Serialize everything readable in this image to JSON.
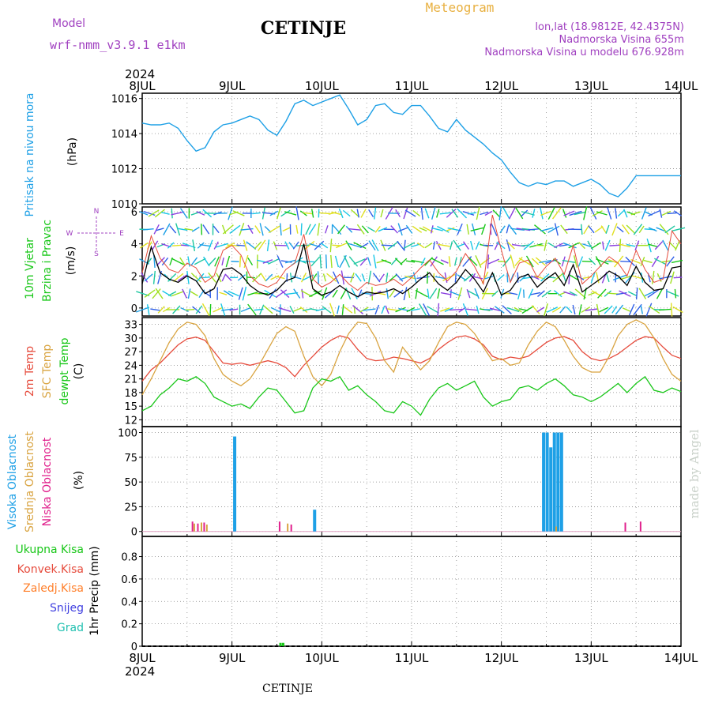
{
  "header": {
    "model_label": "Model",
    "model_name": "wrf-nmm_v3.9.1  e1km",
    "station": "CETINJE",
    "product": "Meteogram",
    "coords": "lon,lat (18.9812E, 42.4375N)",
    "elevation": "Nadmorska Visina 655m",
    "model_elevation": "Nadmorska Visina u modelu 676.928m",
    "year_top": "2024",
    "year_bottom": "2024",
    "footer_station": "CETINJE",
    "credit": "made by Angel"
  },
  "colors": {
    "pressure": "#1ea0e6",
    "temp2m": "#e64b3c",
    "sfc": "#d9a441",
    "dewpt": "#19c719",
    "high_cloud": "#1ea0e6",
    "mid_cloud": "#d9a441",
    "low_cloud": "#e0208c",
    "wind_speed": "#000000",
    "gust": "#e64b3c",
    "total_precip": "#19c719",
    "conv_precip": "#e64b3c",
    "frz_precip": "#ff7f2a",
    "snow": "#4040e0",
    "graupel": "#20c0b0",
    "purple_text": "#a040c0",
    "orange_text": "#e8b040",
    "credit": "#c8d0c8"
  },
  "chart_data": [
    {
      "type": "line",
      "id": "pressure",
      "ylabel": "Pritisak na nivou mora",
      "unit": "(hPa)",
      "yticks": [
        1010,
        1012,
        1014,
        1016
      ],
      "ylim": [
        1010,
        1016.3
      ],
      "x_days": [
        "8JUL",
        "9JUL",
        "10JUL",
        "11JUL",
        "12JUL",
        "13JUL",
        "14JUL"
      ],
      "grid": true,
      "series": [
        {
          "name": "Pritisak na nivou mora",
          "color_key": "pressure",
          "x": [
            0,
            0.1,
            0.2,
            0.3,
            0.4,
            0.5,
            0.6,
            0.7,
            0.8,
            0.9,
            1.0,
            1.1,
            1.2,
            1.3,
            1.4,
            1.5,
            1.6,
            1.7,
            1.8,
            1.9,
            2.0,
            2.1,
            2.2,
            2.3,
            2.4,
            2.5,
            2.6,
            2.7,
            2.8,
            2.9,
            3.0,
            3.1,
            3.2,
            3.3,
            3.4,
            3.5,
            3.6,
            3.7,
            3.8,
            3.9,
            4.0,
            4.1,
            4.2,
            4.3,
            4.4,
            4.5,
            4.6,
            4.7,
            4.8,
            4.9,
            5.0,
            5.1,
            5.2,
            5.3,
            5.4,
            5.5,
            5.6,
            5.7,
            5.8,
            5.9,
            6.0
          ],
          "y": [
            1014.6,
            1014.5,
            1014.5,
            1014.6,
            1014.3,
            1013.6,
            1013.0,
            1013.2,
            1014.1,
            1014.5,
            1014.6,
            1014.8,
            1015.0,
            1014.8,
            1014.2,
            1013.9,
            1014.7,
            1015.7,
            1015.9,
            1015.6,
            1015.8,
            1016.0,
            1016.2,
            1015.4,
            1014.5,
            1014.8,
            1015.6,
            1015.7,
            1015.2,
            1015.1,
            1015.6,
            1015.6,
            1015.0,
            1014.3,
            1014.1,
            1014.8,
            1014.2,
            1013.8,
            1013.4,
            1012.9,
            1012.5,
            1011.8,
            1011.2,
            1011.0,
            1011.2,
            1011.1,
            1011.3,
            1011.3,
            1011.0,
            1011.2,
            1011.4,
            1011.1,
            1010.6,
            1010.4,
            1010.9,
            1011.6,
            1011.6,
            1011.6,
            1011.6,
            1011.6,
            1011.6
          ]
        }
      ]
    },
    {
      "type": "line",
      "id": "wind",
      "ylabel": "10m Vjetar",
      "ylabel2": "Brzina i Pravac",
      "unit": "(m/s)",
      "compass": {
        "n": "N",
        "w": "W",
        "e": "E",
        "s": "S"
      },
      "yticks": [
        0,
        2,
        4,
        6
      ],
      "ylim": [
        -0.5,
        6.3
      ],
      "grid": true,
      "series": [
        {
          "name": "Brzina",
          "color_key": "wind_speed",
          "x": [
            0,
            0.1,
            0.2,
            0.3,
            0.4,
            0.5,
            0.6,
            0.7,
            0.8,
            0.9,
            1.0,
            1.1,
            1.2,
            1.3,
            1.4,
            1.5,
            1.6,
            1.7,
            1.8,
            1.9,
            2.0,
            2.1,
            2.2,
            2.3,
            2.4,
            2.5,
            2.6,
            2.7,
            2.8,
            2.9,
            3.0,
            3.1,
            3.2,
            3.3,
            3.4,
            3.5,
            3.6,
            3.7,
            3.8,
            3.9,
            4.0,
            4.1,
            4.2,
            4.3,
            4.4,
            4.5,
            4.6,
            4.7,
            4.8,
            4.9,
            5.0,
            5.1,
            5.2,
            5.3,
            5.4,
            5.5,
            5.6,
            5.7,
            5.8,
            5.9,
            6.0
          ],
          "y": [
            1.5,
            3.8,
            2.2,
            1.8,
            1.6,
            2.0,
            1.7,
            0.9,
            1.2,
            2.4,
            2.5,
            2.1,
            1.4,
            1.0,
            0.8,
            1.1,
            1.7,
            1.9,
            4.0,
            1.2,
            0.8,
            1.0,
            1.4,
            1.0,
            0.7,
            1.0,
            0.9,
            1.0,
            1.2,
            0.9,
            1.3,
            1.8,
            2.2,
            1.5,
            1.1,
            1.6,
            2.4,
            1.8,
            1.0,
            2.2,
            0.8,
            1.1,
            1.9,
            2.1,
            1.3,
            1.8,
            2.2,
            1.4,
            2.7,
            1.0,
            1.4,
            1.8,
            2.3,
            2.0,
            1.4,
            2.6,
            1.6,
            1.1,
            1.2,
            2.5,
            2.6
          ]
        },
        {
          "name": "Udari",
          "color_key": "gust",
          "x": [
            0,
            0.1,
            0.2,
            0.3,
            0.4,
            0.5,
            0.6,
            0.7,
            0.8,
            0.9,
            1.0,
            1.1,
            1.2,
            1.3,
            1.4,
            1.5,
            1.6,
            1.7,
            1.8,
            1.9,
            2.0,
            2.1,
            2.2,
            2.3,
            2.4,
            2.5,
            2.6,
            2.7,
            2.8,
            2.9,
            3.0,
            3.1,
            3.2,
            3.3,
            3.4,
            3.5,
            3.6,
            3.7,
            3.8,
            3.9,
            4.0,
            4.1,
            4.2,
            4.3,
            4.4,
            4.5,
            4.6,
            4.7,
            4.8,
            4.9,
            5.0,
            5.1,
            5.2,
            5.3,
            5.4,
            5.5,
            5.6,
            5.7,
            5.8,
            5.9,
            6.0
          ],
          "y": [
            2.2,
            4.5,
            3.1,
            2.4,
            2.2,
            2.8,
            2.5,
            1.6,
            2.0,
            3.6,
            3.9,
            3.3,
            2.0,
            1.5,
            1.3,
            1.6,
            2.4,
            2.8,
            4.6,
            1.8,
            1.3,
            1.6,
            2.1,
            1.5,
            1.1,
            1.6,
            1.4,
            1.5,
            1.8,
            1.4,
            1.9,
            2.5,
            3.0,
            2.2,
            1.7,
            2.3,
            3.4,
            2.6,
            1.5,
            5.8,
            3.6,
            1.6,
            2.8,
            3.0,
            1.9,
            2.6,
            3.1,
            2.1,
            3.9,
            1.5,
            2.0,
            2.6,
            3.2,
            2.8,
            2.0,
            3.6,
            2.4,
            1.6,
            1.8,
            4.8,
            4.0
          ]
        }
      ]
    },
    {
      "type": "line",
      "id": "temperature",
      "ylabel": "2m Temp",
      "ylabel2": "SFC Temp",
      "ylabel3": "dewpt Temp",
      "unit": "(C)",
      "yticks": [
        12,
        15,
        18,
        21,
        24,
        27,
        30,
        33
      ],
      "ylim": [
        10.5,
        34.5
      ],
      "grid": true,
      "series": [
        {
          "name": "2m Temp",
          "color_key": "temp2m",
          "x": [
            0,
            0.1,
            0.2,
            0.3,
            0.4,
            0.5,
            0.6,
            0.7,
            0.8,
            0.9,
            1.0,
            1.1,
            1.2,
            1.3,
            1.4,
            1.5,
            1.6,
            1.7,
            1.8,
            1.9,
            2.0,
            2.1,
            2.2,
            2.3,
            2.4,
            2.5,
            2.6,
            2.7,
            2.8,
            2.9,
            3.0,
            3.1,
            3.2,
            3.3,
            3.4,
            3.5,
            3.6,
            3.7,
            3.8,
            3.9,
            4.0,
            4.1,
            4.2,
            4.3,
            4.4,
            4.5,
            4.6,
            4.7,
            4.8,
            4.9,
            5.0,
            5.1,
            5.2,
            5.3,
            5.4,
            5.5,
            5.6,
            5.7,
            5.8,
            5.9,
            6.0
          ],
          "y": [
            20.5,
            23,
            24.5,
            26.5,
            28.5,
            29.8,
            30.2,
            29.5,
            27,
            24.5,
            24.2,
            24.5,
            24,
            24.5,
            25,
            24.5,
            23.5,
            21.5,
            24,
            26,
            28,
            29.5,
            30.5,
            30,
            27.5,
            25.5,
            25,
            25.2,
            25.8,
            25.5,
            25,
            24.5,
            25.5,
            27.5,
            29,
            30.2,
            30.5,
            29.8,
            28.5,
            26,
            25.2,
            25.8,
            25.5,
            26,
            27.5,
            29,
            30,
            30.3,
            29.5,
            27,
            25.5,
            25,
            25.5,
            26.5,
            28,
            29.5,
            30.3,
            30,
            28,
            26.2,
            25.5
          ]
        },
        {
          "name": "SFC Temp",
          "color_key": "sfc",
          "x": [
            0,
            0.1,
            0.2,
            0.3,
            0.4,
            0.5,
            0.6,
            0.7,
            0.8,
            0.9,
            1.0,
            1.1,
            1.2,
            1.3,
            1.4,
            1.5,
            1.6,
            1.7,
            1.8,
            1.9,
            2.0,
            2.1,
            2.2,
            2.3,
            2.4,
            2.5,
            2.6,
            2.7,
            2.8,
            2.9,
            3.0,
            3.1,
            3.2,
            3.3,
            3.4,
            3.5,
            3.6,
            3.7,
            3.8,
            3.9,
            4.0,
            4.1,
            4.2,
            4.3,
            4.4,
            4.5,
            4.6,
            4.7,
            4.8,
            4.9,
            5.0,
            5.1,
            5.2,
            5.3,
            5.4,
            5.5,
            5.6,
            5.7,
            5.8,
            5.9,
            6.0
          ],
          "y": [
            17.5,
            21,
            25,
            29,
            32,
            33.5,
            33,
            30.5,
            25.5,
            22,
            20.5,
            19.5,
            21,
            24,
            27.5,
            31,
            32.5,
            31.5,
            26,
            21.5,
            19.5,
            22,
            27,
            31,
            33.5,
            33.2,
            30,
            25,
            22.5,
            28,
            25.5,
            23,
            25,
            29,
            32.5,
            33.5,
            33,
            31,
            28,
            25,
            25.5,
            24,
            24.5,
            28.5,
            31.5,
            33.5,
            32.5,
            29.5,
            26,
            23.5,
            22.5,
            22.5,
            26,
            30.5,
            33,
            34,
            33,
            30,
            25.5,
            22,
            20.5
          ]
        },
        {
          "name": "dewpt Temp",
          "color_key": "dewpt",
          "x": [
            0,
            0.1,
            0.2,
            0.3,
            0.4,
            0.5,
            0.6,
            0.7,
            0.8,
            0.9,
            1.0,
            1.1,
            1.2,
            1.3,
            1.4,
            1.5,
            1.6,
            1.7,
            1.8,
            1.9,
            2.0,
            2.1,
            2.2,
            2.3,
            2.4,
            2.5,
            2.6,
            2.7,
            2.8,
            2.9,
            3.0,
            3.1,
            3.2,
            3.3,
            3.4,
            3.5,
            3.6,
            3.7,
            3.8,
            3.9,
            4.0,
            4.1,
            4.2,
            4.3,
            4.4,
            4.5,
            4.6,
            4.7,
            4.8,
            4.9,
            5.0,
            5.1,
            5.2,
            5.3,
            5.4,
            5.5,
            5.6,
            5.7,
            5.8,
            5.9,
            6.0
          ],
          "y": [
            14,
            15,
            17.5,
            19,
            21,
            20.5,
            21.5,
            20,
            17,
            16,
            15,
            15.5,
            14.5,
            17,
            19,
            18.5,
            16,
            13.5,
            14,
            19,
            21,
            20.5,
            21.5,
            18.5,
            19.5,
            17.5,
            16,
            14,
            13.5,
            16,
            15,
            13,
            16.5,
            19,
            20,
            18.5,
            19.5,
            20.5,
            17,
            15,
            16,
            16.5,
            19,
            19.5,
            18.5,
            20,
            21,
            19.5,
            17.5,
            17,
            16,
            17,
            18.5,
            20,
            18,
            20,
            21.5,
            18.5,
            18,
            19,
            18.2
          ]
        }
      ]
    },
    {
      "type": "bar",
      "id": "clouds",
      "ylabel": "Visoka Oblacnost",
      "ylabel2": "Srednja Oblacnost",
      "ylabel3": "Niska Oblacnost",
      "unit": "(%)",
      "yticks": [
        0,
        25,
        50,
        75,
        100
      ],
      "ylim": [
        -5,
        106
      ],
      "grid": true,
      "series": [
        {
          "name": "Visoka Oblacnost",
          "color_key": "high_cloud",
          "x": [
            1.03,
            1.92,
            4.47,
            4.51,
            4.55,
            4.59,
            4.63,
            4.67
          ],
          "y": [
            96,
            22,
            100,
            100,
            85,
            100,
            100,
            100
          ]
        },
        {
          "name": "Srednja Oblacnost",
          "color_key": "mid_cloud",
          "x": [
            0.58,
            0.66,
            0.72,
            1.62,
            4.61
          ],
          "y": [
            8,
            9,
            7,
            8,
            5
          ]
        },
        {
          "name": "Niska Oblacnost",
          "color_key": "low_cloud",
          "x": [
            0.56,
            0.62,
            0.69,
            1.53,
            1.66,
            5.38,
            5.55
          ],
          "y": [
            10,
            8,
            9,
            10,
            7,
            9,
            10
          ]
        }
      ]
    },
    {
      "type": "bar",
      "id": "precip",
      "ylabel": "1hr Precip (mm)",
      "legend": [
        "Ukupna Kisa",
        "Konvek.Kisa",
        "Zaledj.Kisa",
        "Snijeg",
        "Grad"
      ],
      "yticks": [
        0,
        0.2,
        0.4,
        0.6,
        0.8
      ],
      "ylim": [
        0,
        0.98
      ],
      "x_days": [
        "8JUL",
        "9JUL",
        "10JUL",
        "11JUL",
        "12JUL",
        "13JUL",
        "14JUL"
      ],
      "grid": true,
      "series": [
        {
          "name": "Ukupna Kisa",
          "color_key": "total_precip",
          "x": [
            1.54,
            1.57
          ],
          "y": [
            0.03,
            0.03
          ]
        }
      ]
    }
  ]
}
